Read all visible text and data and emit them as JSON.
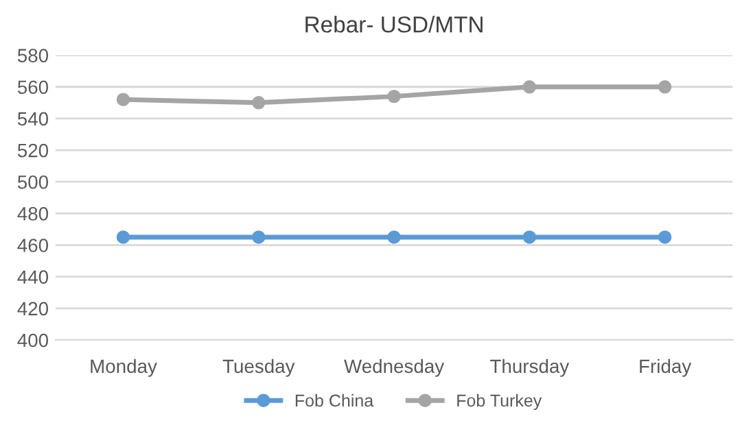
{
  "chart_data": {
    "type": "line",
    "title": "Rebar- USD/MTN",
    "categories": [
      "Monday",
      "Tuesday",
      "Wednesday",
      "Thursday",
      "Friday"
    ],
    "series": [
      {
        "name": "Fob China",
        "color": "#5b9bd5",
        "values": [
          465,
          465,
          465,
          465,
          465
        ]
      },
      {
        "name": "Fob Turkey",
        "color": "#a5a5a5",
        "values": [
          552,
          550,
          554,
          560,
          560
        ]
      }
    ],
    "ylim": [
      400,
      580
    ],
    "yticks": [
      400,
      420,
      440,
      460,
      480,
      500,
      520,
      540,
      560,
      580
    ],
    "grid": "y",
    "legend": "bottom",
    "marker": "circle",
    "line_style": "solid"
  }
}
